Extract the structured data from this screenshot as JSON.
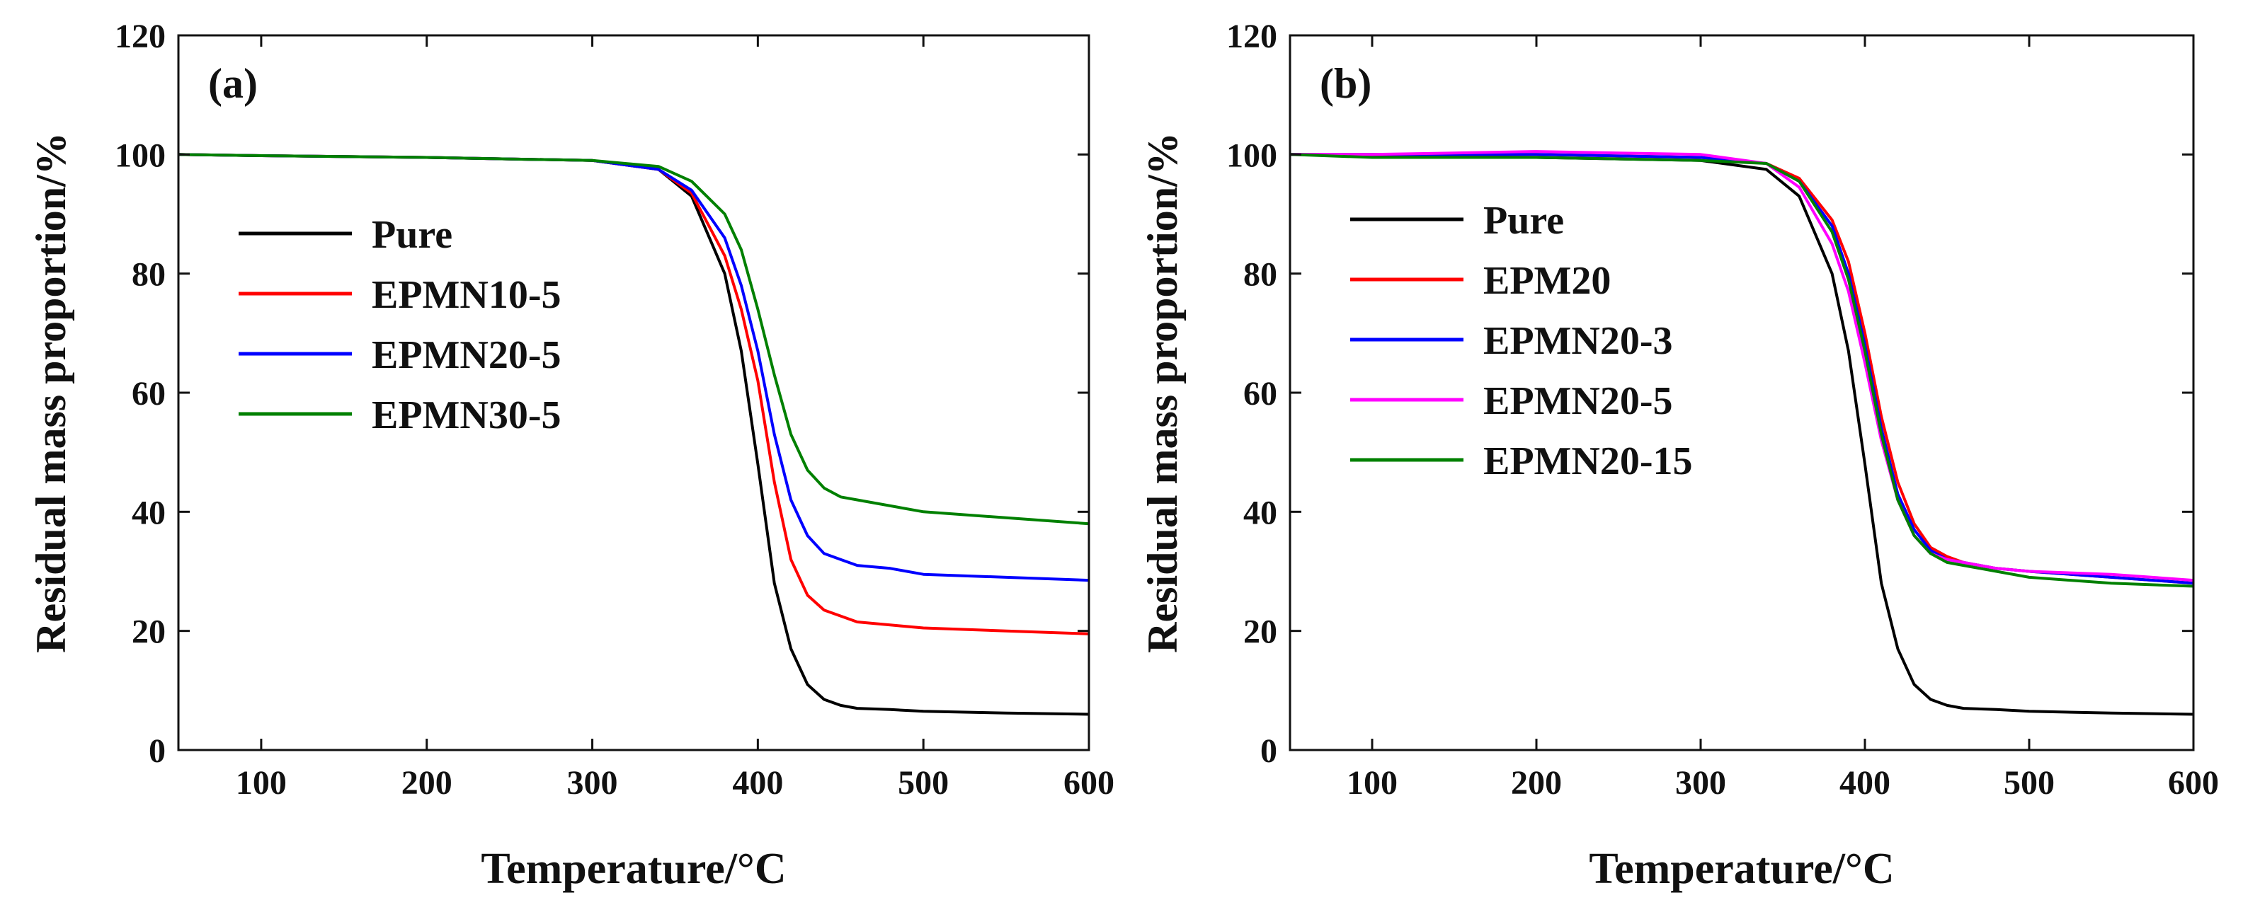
{
  "chart_data": [
    {
      "type": "line",
      "panel_label": "(a)",
      "xlabel": "Temperature/°C",
      "ylabel": "Residual mass proportion/%",
      "xlim": [
        50,
        600
      ],
      "ylim": [
        0,
        120
      ],
      "xticks": [
        100,
        200,
        300,
        400,
        500,
        600
      ],
      "yticks": [
        0,
        20,
        40,
        60,
        80,
        100,
        120
      ],
      "grid": false,
      "legend_position": "middle-left",
      "series": [
        {
          "name": "Pure",
          "color": "#000000",
          "x": [
            50,
            100,
            200,
            300,
            340,
            360,
            380,
            390,
            400,
            410,
            420,
            430,
            440,
            450,
            460,
            480,
            500,
            550,
            600
          ],
          "y": [
            100,
            99.8,
            99.5,
            99,
            97.5,
            93,
            80,
            67,
            48,
            28,
            17,
            11,
            8.5,
            7.5,
            7,
            6.8,
            6.5,
            6.2,
            6
          ]
        },
        {
          "name": "EPMN10-5",
          "color": "#ff0000",
          "x": [
            50,
            100,
            200,
            300,
            340,
            360,
            380,
            390,
            400,
            410,
            420,
            430,
            440,
            450,
            460,
            480,
            500,
            550,
            600
          ],
          "y": [
            100,
            99.8,
            99.5,
            99,
            97.5,
            93.5,
            83,
            74,
            62,
            45,
            32,
            26,
            23.5,
            22.5,
            21.5,
            21,
            20.5,
            20,
            19.5
          ]
        },
        {
          "name": "EPMN20-5",
          "color": "#0000ff",
          "x": [
            50,
            100,
            200,
            300,
            340,
            360,
            380,
            390,
            400,
            410,
            420,
            430,
            440,
            450,
            460,
            480,
            500,
            550,
            600
          ],
          "y": [
            100,
            99.8,
            99.5,
            99,
            97.5,
            94,
            86,
            78,
            67,
            53,
            42,
            36,
            33,
            32,
            31,
            30.5,
            29.5,
            29,
            28.5
          ]
        },
        {
          "name": "EPMN30-5",
          "color": "#008000",
          "x": [
            50,
            100,
            200,
            300,
            340,
            360,
            380,
            390,
            400,
            410,
            420,
            430,
            440,
            450,
            460,
            480,
            500,
            550,
            600
          ],
          "y": [
            100,
            99.8,
            99.5,
            99,
            98,
            95.5,
            90,
            84,
            74,
            63,
            53,
            47,
            44,
            42.5,
            42,
            41,
            40,
            39,
            38
          ]
        }
      ]
    },
    {
      "type": "line",
      "panel_label": "(b)",
      "xlabel": "Temperature/°C",
      "ylabel": "Residual mass proportion/%",
      "xlim": [
        50,
        600
      ],
      "ylim": [
        0,
        120
      ],
      "xticks": [
        100,
        200,
        300,
        400,
        500,
        600
      ],
      "yticks": [
        0,
        20,
        40,
        60,
        80,
        100,
        120
      ],
      "grid": false,
      "legend_position": "middle-left",
      "series": [
        {
          "name": "Pure",
          "color": "#000000",
          "x": [
            50,
            100,
            200,
            300,
            340,
            360,
            380,
            390,
            400,
            410,
            420,
            430,
            440,
            450,
            460,
            480,
            500,
            550,
            600
          ],
          "y": [
            100,
            99.8,
            99.5,
            99,
            97.5,
            93,
            80,
            67,
            48,
            28,
            17,
            11,
            8.5,
            7.5,
            7,
            6.8,
            6.5,
            6.2,
            6
          ]
        },
        {
          "name": "EPM20",
          "color": "#ff0000",
          "x": [
            50,
            100,
            200,
            300,
            340,
            360,
            380,
            390,
            400,
            410,
            420,
            430,
            440,
            450,
            460,
            480,
            500,
            550,
            600
          ],
          "y": [
            100,
            100,
            100,
            99.5,
            98.5,
            96,
            89,
            82,
            70,
            56,
            45,
            38,
            34,
            32.5,
            31.5,
            30.5,
            30,
            29,
            28
          ]
        },
        {
          "name": "EPMN20-3",
          "color": "#0000ff",
          "x": [
            50,
            100,
            200,
            300,
            340,
            360,
            380,
            390,
            400,
            410,
            420,
            430,
            440,
            450,
            460,
            480,
            500,
            550,
            600
          ],
          "y": [
            100,
            100,
            100,
            99.5,
            98.5,
            95.5,
            88,
            80,
            68,
            54,
            43,
            37,
            33.5,
            32,
            31.5,
            30.5,
            30,
            29,
            28
          ]
        },
        {
          "name": "EPMN20-5",
          "color": "#ff00ff",
          "x": [
            50,
            100,
            200,
            300,
            340,
            360,
            380,
            390,
            400,
            410,
            420,
            430,
            440,
            450,
            460,
            480,
            500,
            550,
            600
          ],
          "y": [
            100,
            100,
            100.5,
            100,
            98.5,
            94.5,
            85,
            77,
            65,
            52,
            42,
            36,
            33,
            32,
            31.5,
            30.5,
            30,
            29.5,
            28.5
          ]
        },
        {
          "name": "EPMN20-15",
          "color": "#008000",
          "x": [
            50,
            100,
            200,
            300,
            340,
            360,
            380,
            390,
            400,
            410,
            420,
            430,
            440,
            450,
            460,
            480,
            500,
            550,
            600
          ],
          "y": [
            100,
            99.5,
            99.5,
            99,
            98.5,
            95.5,
            87,
            79,
            67,
            53,
            42,
            36,
            33,
            31.5,
            31,
            30,
            29,
            28,
            27.5
          ]
        }
      ]
    }
  ]
}
